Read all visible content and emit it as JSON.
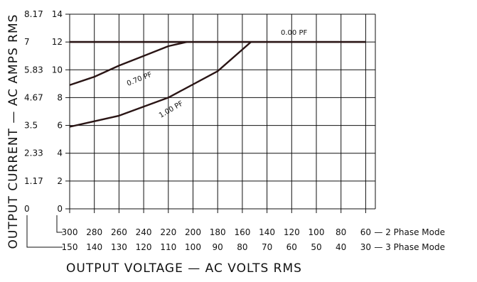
{
  "chart_data": {
    "type": "line",
    "title": "",
    "xlabel": "OUTPUT VOLTAGE — AC VOLTS RMS",
    "ylabel": "OUTPUT CURRENT — AC AMPS RMS",
    "x_axis_primary": {
      "ticks": [
        300,
        280,
        260,
        240,
        220,
        200,
        180,
        160,
        140,
        120,
        100,
        80,
        60
      ],
      "suffix": "— 2 Phase Mode",
      "range": [
        300,
        60
      ]
    },
    "x_axis_secondary": {
      "ticks": [
        150,
        140,
        130,
        120,
        110,
        100,
        90,
        80,
        70,
        60,
        50,
        40,
        30
      ],
      "suffix": "— 3 Phase Mode"
    },
    "y_axis_inner": {
      "ticks": [
        0,
        2,
        4,
        6,
        8,
        10,
        12,
        14
      ],
      "range": [
        0,
        14
      ]
    },
    "y_axis_outer": {
      "ticks": [
        "0",
        "1.17",
        "2.33",
        "3.5",
        "4.67",
        "5.83",
        "7",
        "8.17"
      ]
    },
    "grid": true,
    "series": [
      {
        "name": "0.00 PF",
        "x": [
          300,
          60
        ],
        "y": [
          12,
          12
        ]
      },
      {
        "name": "0.70 PF",
        "x": [
          300,
          280,
          260,
          240,
          220,
          205
        ],
        "y": [
          8.9,
          9.5,
          10.3,
          11.0,
          11.7,
          12.0
        ]
      },
      {
        "name": "1.00 PF",
        "x": [
          300,
          260,
          220,
          180,
          153
        ],
        "y": [
          5.9,
          6.7,
          8.0,
          9.9,
          12.0
        ]
      }
    ],
    "colors": {
      "line": "#2a1515",
      "grid": "#111111",
      "text": "#111111"
    }
  }
}
